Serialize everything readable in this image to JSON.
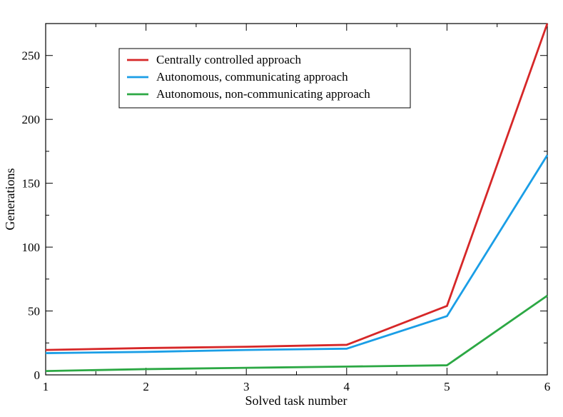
{
  "chart_data": {
    "type": "line",
    "xlabel": "Solved task number",
    "ylabel": "Generations",
    "xlim": [
      1,
      6
    ],
    "ylim": [
      0,
      275
    ],
    "x_ticks": [
      1,
      2,
      3,
      4,
      5,
      6
    ],
    "y_ticks": [
      0,
      50,
      100,
      150,
      200,
      250
    ],
    "grid": false,
    "legend_position": "top-left",
    "x": [
      1,
      2,
      3,
      4,
      5,
      6
    ],
    "series": [
      {
        "name": "Centrally controlled approach",
        "color": "#d62728",
        "values": [
          19.5,
          21,
          22,
          23.5,
          54,
          275
        ]
      },
      {
        "name": "Autonomous, communicating approach",
        "color": "#1a9ee6",
        "values": [
          17,
          18,
          19.5,
          20.5,
          46,
          172
        ]
      },
      {
        "name": "Autonomous, non-communicating approach",
        "color": "#2ca844",
        "values": [
          3,
          4.5,
          5.5,
          6.5,
          7.5,
          62
        ]
      }
    ]
  }
}
